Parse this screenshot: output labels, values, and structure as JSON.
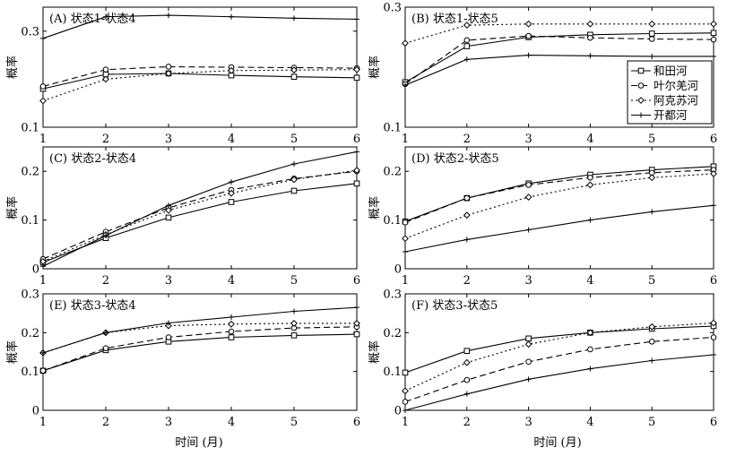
{
  "figure": {
    "xlabel": "时间 (月)",
    "ylabel": "概率",
    "legend": [
      "和田河",
      "叶尔羌河",
      "阿克苏河",
      "开都河"
    ]
  },
  "chart_data": [
    {
      "type": "line",
      "title": "(A) 状态1-状态4",
      "x": [
        1,
        2,
        3,
        4,
        5,
        6
      ],
      "ylim": [
        0.1,
        0.35
      ],
      "yticks": [
        "0.1",
        "0.3"
      ],
      "series": [
        {
          "name": "和田河",
          "values": [
            0.18,
            0.21,
            0.212,
            0.208,
            0.205,
            0.203
          ]
        },
        {
          "name": "叶尔羌河",
          "values": [
            0.185,
            0.22,
            0.226,
            0.225,
            0.224,
            0.223
          ]
        },
        {
          "name": "阿克苏河",
          "values": [
            0.155,
            0.2,
            0.212,
            0.218,
            0.219,
            0.22
          ]
        },
        {
          "name": "开都河",
          "values": [
            0.285,
            0.33,
            0.333,
            0.33,
            0.327,
            0.325
          ]
        }
      ]
    },
    {
      "type": "line",
      "title": "(B) 状态1-状态5",
      "x": [
        1,
        2,
        3,
        4,
        5,
        6
      ],
      "ylim": [
        0.1,
        0.3
      ],
      "yticks": [
        "0.1",
        "0.3"
      ],
      "legend_position": "right",
      "series": [
        {
          "name": "和田河",
          "values": [
            0.175,
            0.235,
            0.25,
            0.254,
            0.256,
            0.257
          ]
        },
        {
          "name": "叶尔羌河",
          "values": [
            0.172,
            0.245,
            0.252,
            0.249,
            0.247,
            0.246
          ]
        },
        {
          "name": "阿克苏河",
          "values": [
            0.24,
            0.27,
            0.272,
            0.272,
            0.272,
            0.272
          ]
        },
        {
          "name": "开都河",
          "values": [
            0.17,
            0.213,
            0.22,
            0.219,
            0.218,
            0.218
          ]
        }
      ]
    },
    {
      "type": "line",
      "title": "(C) 状态2-状态4",
      "x": [
        1,
        2,
        3,
        4,
        5,
        6
      ],
      "ylim": [
        0,
        0.25
      ],
      "yticks": [
        "0",
        "0.1",
        "0.2"
      ],
      "series": [
        {
          "name": "和田河",
          "values": [
            0.013,
            0.063,
            0.105,
            0.137,
            0.16,
            0.175
          ]
        },
        {
          "name": "叶尔羌河",
          "values": [
            0.02,
            0.076,
            0.125,
            0.162,
            0.185,
            0.2
          ]
        },
        {
          "name": "阿克苏河",
          "values": [
            0.015,
            0.07,
            0.12,
            0.155,
            0.183,
            0.202
          ]
        },
        {
          "name": "开都河",
          "values": [
            0.005,
            0.068,
            0.13,
            0.178,
            0.215,
            0.24
          ]
        }
      ]
    },
    {
      "type": "line",
      "title": "(D) 状态2-状态5",
      "x": [
        1,
        2,
        3,
        4,
        5,
        6
      ],
      "ylim": [
        0,
        0.25
      ],
      "yticks": [
        "0",
        "0.1",
        "0.2"
      ],
      "series": [
        {
          "name": "和田河",
          "values": [
            0.097,
            0.145,
            0.175,
            0.193,
            0.203,
            0.21
          ]
        },
        {
          "name": "叶尔羌河",
          "values": [
            0.095,
            0.145,
            0.172,
            0.187,
            0.197,
            0.203
          ]
        },
        {
          "name": "阿克苏河",
          "values": [
            0.062,
            0.11,
            0.147,
            0.172,
            0.187,
            0.195
          ]
        },
        {
          "name": "开都河",
          "values": [
            0.035,
            0.06,
            0.08,
            0.1,
            0.117,
            0.13
          ]
        }
      ]
    },
    {
      "type": "line",
      "title": "(E) 状态3-状态4",
      "x": [
        1,
        2,
        3,
        4,
        5,
        6
      ],
      "ylim": [
        0,
        0.3
      ],
      "yticks": [
        "0",
        "0.1",
        "0.2",
        "0.3"
      ],
      "series": [
        {
          "name": "和田河",
          "values": [
            0.102,
            0.155,
            0.177,
            0.188,
            0.193,
            0.196
          ]
        },
        {
          "name": "叶尔羌河",
          "values": [
            0.102,
            0.16,
            0.188,
            0.203,
            0.212,
            0.215
          ]
        },
        {
          "name": "阿克苏河",
          "values": [
            0.148,
            0.2,
            0.218,
            0.222,
            0.224,
            0.224
          ]
        },
        {
          "name": "开都河",
          "values": [
            0.148,
            0.2,
            0.225,
            0.24,
            0.255,
            0.265
          ]
        }
      ]
    },
    {
      "type": "line",
      "title": "(F) 状态3-状态5",
      "x": [
        1,
        2,
        3,
        4,
        5,
        6
      ],
      "ylim": [
        0,
        0.3
      ],
      "yticks": [
        "0",
        "0.1",
        "0.2",
        "0.3"
      ],
      "series": [
        {
          "name": "和田河",
          "values": [
            0.097,
            0.153,
            0.185,
            0.2,
            0.21,
            0.217
          ]
        },
        {
          "name": "叶尔羌河",
          "values": [
            0.022,
            0.078,
            0.125,
            0.157,
            0.177,
            0.188
          ]
        },
        {
          "name": "阿克苏河",
          "values": [
            0.05,
            0.123,
            0.17,
            0.2,
            0.215,
            0.225
          ]
        },
        {
          "name": "开都河",
          "values": [
            0.0,
            0.042,
            0.08,
            0.107,
            0.128,
            0.143
          ]
        }
      ]
    }
  ]
}
